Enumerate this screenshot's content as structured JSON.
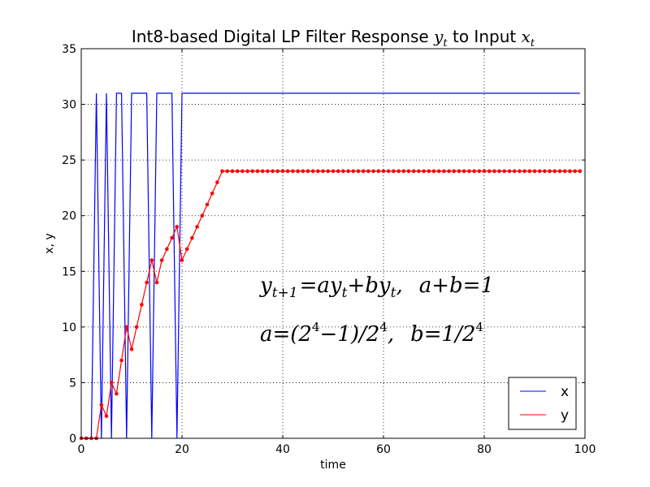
{
  "chart_data": {
    "type": "line",
    "title": "Int8-based Digital LP Filter Response y_t to Input x_t",
    "title_parts": {
      "prefix": "Int8-based Digital LP Filter Response ",
      "y_var": "y",
      "middle": " to Input ",
      "x_var": "x",
      "sub": "t"
    },
    "xlabel": "time",
    "ylabel": "x, y",
    "xlim": [
      0,
      100
    ],
    "ylim": [
      0,
      35
    ],
    "x_ticks": [
      0,
      20,
      40,
      60,
      80,
      100
    ],
    "y_ticks": [
      0,
      5,
      10,
      15,
      20,
      25,
      30,
      35
    ],
    "grid": true,
    "grid_style": "dotted",
    "legend_position": "bottom-right",
    "series": [
      {
        "name": "x",
        "color": "#0000ff",
        "marker": "none",
        "x": [
          0,
          1,
          2,
          3,
          4,
          5,
          6,
          7,
          8,
          9,
          10,
          11,
          12,
          13,
          14,
          15,
          16,
          17,
          18,
          19,
          20,
          21,
          22,
          23,
          24,
          25,
          26,
          27,
          28,
          29,
          30,
          31,
          32,
          33,
          34,
          35,
          36,
          37,
          38,
          39,
          40,
          41,
          42,
          43,
          44,
          45,
          46,
          47,
          48,
          49,
          50,
          51,
          52,
          53,
          54,
          55,
          56,
          57,
          58,
          59,
          60,
          61,
          62,
          63,
          64,
          65,
          66,
          67,
          68,
          69,
          70,
          71,
          72,
          73,
          74,
          75,
          76,
          77,
          78,
          79,
          80,
          81,
          82,
          83,
          84,
          85,
          86,
          87,
          88,
          89,
          90,
          91,
          92,
          93,
          94,
          95,
          96,
          97,
          98,
          99
        ],
        "values": [
          0,
          0,
          0,
          31,
          0,
          31,
          0,
          31,
          31,
          0,
          31,
          31,
          31,
          31,
          0,
          31,
          31,
          31,
          31,
          0,
          31,
          31,
          31,
          31,
          31,
          31,
          31,
          31,
          31,
          31,
          31,
          31,
          31,
          31,
          31,
          31,
          31,
          31,
          31,
          31,
          31,
          31,
          31,
          31,
          31,
          31,
          31,
          31,
          31,
          31,
          31,
          31,
          31,
          31,
          31,
          31,
          31,
          31,
          31,
          31,
          31,
          31,
          31,
          31,
          31,
          31,
          31,
          31,
          31,
          31,
          31,
          31,
          31,
          31,
          31,
          31,
          31,
          31,
          31,
          31,
          31,
          31,
          31,
          31,
          31,
          31,
          31,
          31,
          31,
          31,
          31,
          31,
          31,
          31,
          31,
          31,
          31,
          31,
          31,
          31
        ]
      },
      {
        "name": "y",
        "color": "#ff0000",
        "marker": "dot",
        "x": [
          0,
          1,
          2,
          3,
          4,
          5,
          6,
          7,
          8,
          9,
          10,
          11,
          12,
          13,
          14,
          15,
          16,
          17,
          18,
          19,
          20,
          21,
          22,
          23,
          24,
          25,
          26,
          27,
          28,
          29,
          30,
          31,
          32,
          33,
          34,
          35,
          36,
          37,
          38,
          39,
          40,
          41,
          42,
          43,
          44,
          45,
          46,
          47,
          48,
          49,
          50,
          51,
          52,
          53,
          54,
          55,
          56,
          57,
          58,
          59,
          60,
          61,
          62,
          63,
          64,
          65,
          66,
          67,
          68,
          69,
          70,
          71,
          72,
          73,
          74,
          75,
          76,
          77,
          78,
          79,
          80,
          81,
          82,
          83,
          84,
          85,
          86,
          87,
          88,
          89,
          90,
          91,
          92,
          93,
          94,
          95,
          96,
          97,
          98,
          99
        ],
        "values": [
          0,
          0,
          0,
          0,
          3,
          2,
          5,
          4,
          7,
          10,
          8,
          10,
          12,
          14,
          16,
          14,
          16,
          17,
          18,
          19,
          16,
          17,
          18,
          19,
          20,
          21,
          22,
          23,
          24,
          24,
          24,
          24,
          24,
          24,
          24,
          24,
          24,
          24,
          24,
          24,
          24,
          24,
          24,
          24,
          24,
          24,
          24,
          24,
          24,
          24,
          24,
          24,
          24,
          24,
          24,
          24,
          24,
          24,
          24,
          24,
          24,
          24,
          24,
          24,
          24,
          24,
          24,
          24,
          24,
          24,
          24,
          24,
          24,
          24,
          24,
          24,
          24,
          24,
          24,
          24,
          24,
          24,
          24,
          24,
          24,
          24,
          24,
          24,
          24,
          24,
          24,
          24,
          24,
          24,
          24,
          24,
          24,
          24,
          24,
          24
        ]
      }
    ],
    "annotations": {
      "eq1": {
        "y": "y",
        "sub1": "t+1",
        "eq": "=",
        "a": "a",
        "y2": "y",
        "sub2": "t",
        "plus": "+",
        "b": "b",
        "y3": "y",
        "sub3": "t",
        "comma": ",",
        "rhs": "a+b=1"
      },
      "eq2": {
        "lhs": "a=(2",
        "sup1": "4",
        "mid": "−1)/2",
        "sup2": "4",
        "comma": ",",
        "rhs": "b=1/2",
        "sup3": "4"
      }
    }
  }
}
